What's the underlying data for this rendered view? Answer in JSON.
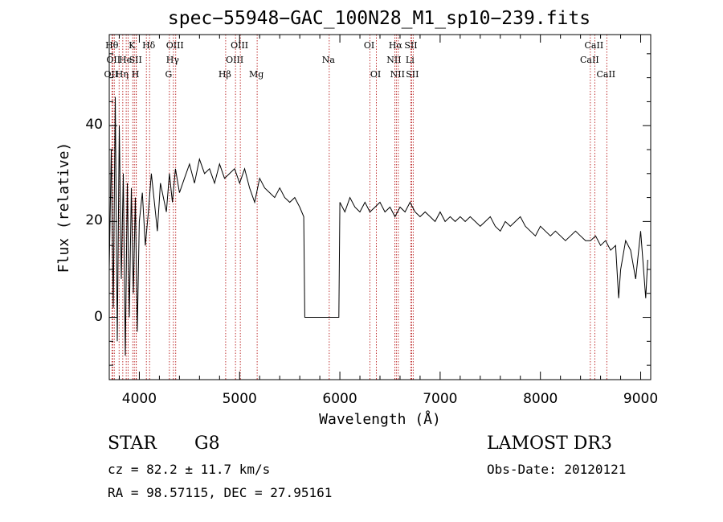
{
  "chart_data": {
    "type": "line",
    "title": "spec−55948−GAC_100N28_M1_sp10−239.fits",
    "xlabel": "Wavelength (Å)",
    "ylabel": "Flux (relative)",
    "xlim": [
      3700,
      9100
    ],
    "ylim": [
      -13,
      59
    ],
    "xticks": [
      4000,
      5000,
      6000,
      7000,
      8000,
      9000
    ],
    "xtick_labels": [
      "4000",
      "5000",
      "6000",
      "7000",
      "8000",
      "9000"
    ],
    "yticks": [
      0,
      20,
      40
    ],
    "ytick_labels": [
      "0",
      "20",
      "40"
    ],
    "series": [
      {
        "name": "spectrum",
        "x": [
          3700,
          3720,
          3740,
          3760,
          3780,
          3800,
          3820,
          3840,
          3860,
          3880,
          3900,
          3920,
          3940,
          3960,
          3980,
          4000,
          4030,
          4060,
          4090,
          4120,
          4150,
          4180,
          4210,
          4240,
          4270,
          4300,
          4330,
          4360,
          4400,
          4450,
          4500,
          4550,
          4600,
          4650,
          4700,
          4750,
          4800,
          4850,
          4900,
          4950,
          5000,
          5050,
          5100,
          5150,
          5200,
          5250,
          5300,
          5350,
          5400,
          5450,
          5500,
          5550,
          5600,
          5640,
          5650,
          5700,
          5800,
          5900,
          5990,
          6000,
          6050,
          6100,
          6150,
          6200,
          6250,
          6300,
          6350,
          6400,
          6450,
          6500,
          6550,
          6600,
          6650,
          6700,
          6750,
          6800,
          6850,
          6900,
          6950,
          7000,
          7050,
          7100,
          7150,
          7200,
          7250,
          7300,
          7350,
          7400,
          7450,
          7500,
          7550,
          7600,
          7650,
          7700,
          7750,
          7800,
          7850,
          7900,
          7950,
          8000,
          8050,
          8100,
          8150,
          8200,
          8250,
          8300,
          8350,
          8400,
          8450,
          8500,
          8550,
          8600,
          8650,
          8700,
          8750,
          8780,
          8800,
          8850,
          8900,
          8950,
          9000,
          9050,
          9070
        ],
        "y": [
          10,
          35,
          2,
          46,
          -5,
          40,
          8,
          30,
          -8,
          28,
          0,
          27,
          5,
          25,
          -3,
          20,
          26,
          15,
          22,
          30,
          24,
          18,
          28,
          25,
          22,
          30,
          24,
          31,
          26,
          29,
          32,
          28,
          33,
          30,
          31,
          28,
          32,
          29,
          30,
          31,
          28,
          31,
          27,
          24,
          29,
          27,
          26,
          25,
          27,
          25,
          24,
          25,
          23,
          21,
          0,
          0,
          0,
          0,
          0,
          24,
          22,
          25,
          23,
          22,
          24,
          22,
          23,
          24,
          22,
          23,
          21,
          23,
          22,
          24,
          22,
          21,
          22,
          21,
          20,
          22,
          20,
          21,
          20,
          21,
          20,
          21,
          20,
          19,
          20,
          21,
          19,
          18,
          20,
          19,
          20,
          21,
          19,
          18,
          17,
          19,
          18,
          17,
          18,
          17,
          16,
          17,
          18,
          17,
          16,
          16,
          17,
          15,
          16,
          14,
          15,
          4,
          10,
          16,
          14,
          8,
          18,
          4,
          12
        ]
      }
    ],
    "line_markers": [
      {
        "wavelength": 3727,
        "label": "OII",
        "row": 2
      },
      {
        "wavelength": 3734,
        "label": "Hθ",
        "row": 0
      },
      {
        "wavelength": 3750,
        "label": "OII",
        "row": 1
      },
      {
        "wavelength": 3798,
        "label": "",
        "row": 0
      },
      {
        "wavelength": 3835,
        "label": "Hη",
        "row": 2
      },
      {
        "wavelength": 3869,
        "label": "He",
        "row": 1
      },
      {
        "wavelength": 3889,
        "label": "",
        "row": 0
      },
      {
        "wavelength": 3934,
        "label": "K",
        "row": 0
      },
      {
        "wavelength": 3950,
        "label": "",
        "row": 0
      },
      {
        "wavelength": 3969,
        "label": "H",
        "row": 2
      },
      {
        "wavelength": 3970,
        "label": "SII",
        "row": 1
      },
      {
        "wavelength": 4070,
        "label": "",
        "row": 0
      },
      {
        "wavelength": 4102,
        "label": "Hδ",
        "row": 0
      },
      {
        "wavelength": 4300,
        "label": "G",
        "row": 2
      },
      {
        "wavelength": 4340,
        "label": "Hγ",
        "row": 1
      },
      {
        "wavelength": 4363,
        "label": "OIII",
        "row": 0
      },
      {
        "wavelength": 4861,
        "label": "Hβ",
        "row": 2
      },
      {
        "wavelength": 4959,
        "label": "OIII",
        "row": 1
      },
      {
        "wavelength": 5007,
        "label": "OIII",
        "row": 0
      },
      {
        "wavelength": 5175,
        "label": "Mg",
        "row": 2
      },
      {
        "wavelength": 5894,
        "label": "Na",
        "row": 1
      },
      {
        "wavelength": 6300,
        "label": "OI",
        "row": 0
      },
      {
        "wavelength": 6364,
        "label": "OI",
        "row": 2
      },
      {
        "wavelength": 6548,
        "label": "NII",
        "row": 1
      },
      {
        "wavelength": 6563,
        "label": "Hα",
        "row": 0
      },
      {
        "wavelength": 6583,
        "label": "NII",
        "row": 2
      },
      {
        "wavelength": 6707,
        "label": "Li",
        "row": 1
      },
      {
        "wavelength": 6716,
        "label": "SII",
        "row": 0
      },
      {
        "wavelength": 6731,
        "label": "SII",
        "row": 2
      },
      {
        "wavelength": 8498,
        "label": "CaII",
        "row": 1
      },
      {
        "wavelength": 8542,
        "label": "CaII",
        "row": 0
      },
      {
        "wavelength": 8662,
        "label": "CaII",
        "row": 2
      }
    ]
  },
  "info": {
    "object_class": "STAR",
    "subclass": "G8",
    "survey": "LAMOST DR3",
    "cz": "cz = 82.2 ± 11.7 km/s",
    "obs_date": "Obs-Date: 20120121",
    "coords": "RA =  98.57115, DEC =  27.95161"
  },
  "colors": {
    "line": "#000000",
    "marker": "#b00000"
  }
}
